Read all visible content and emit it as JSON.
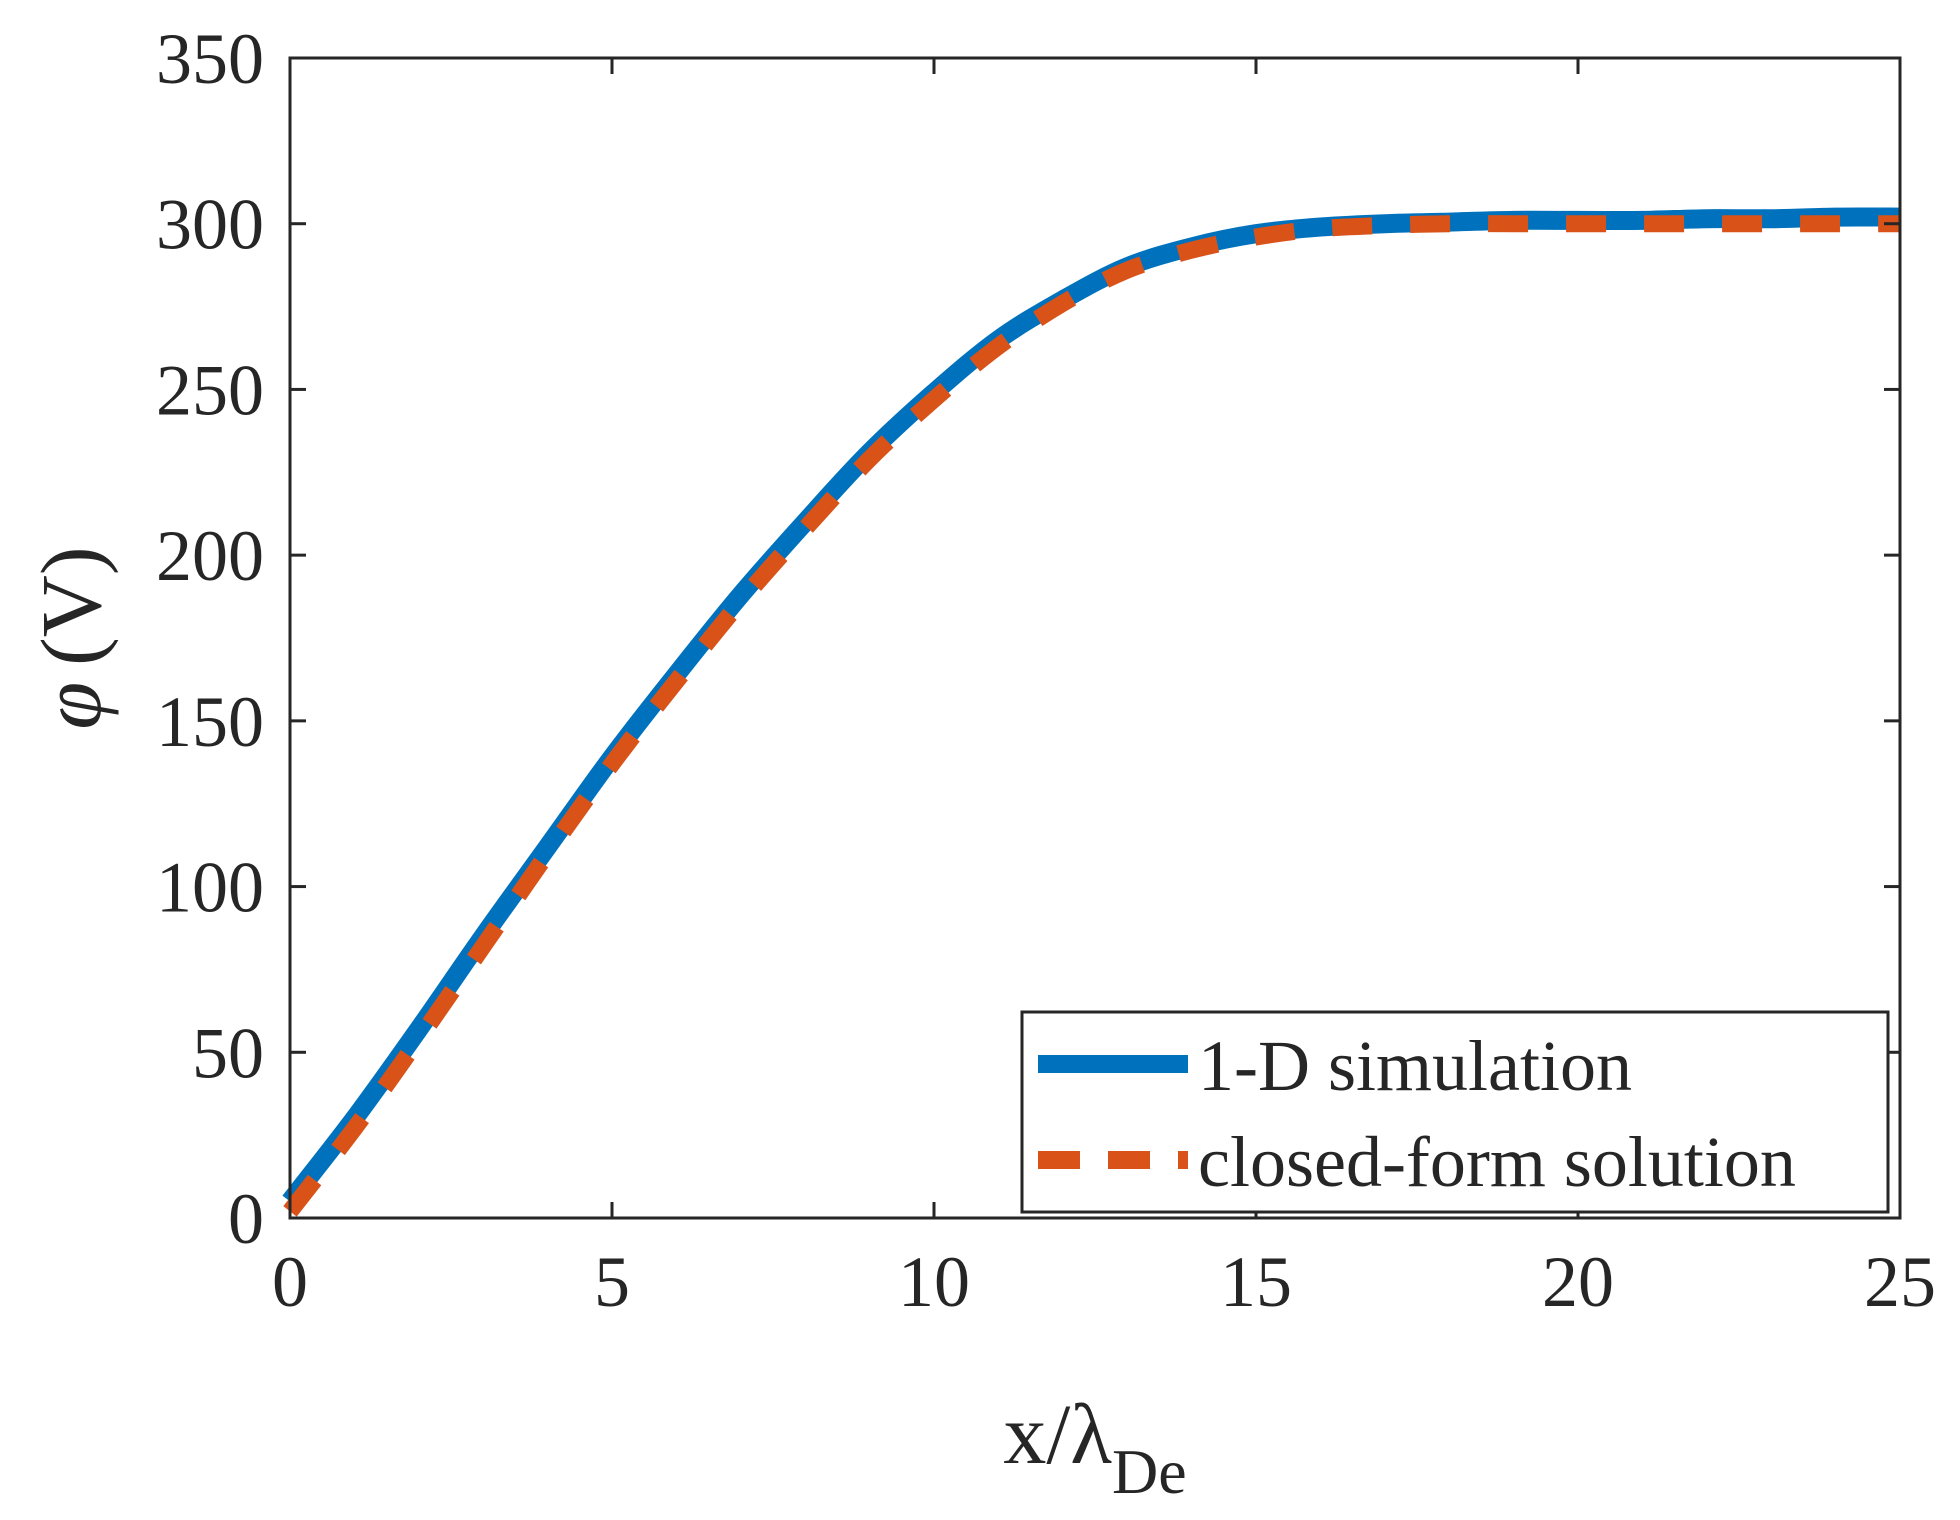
{
  "chart_data": {
    "type": "line",
    "xlabel": "x/λ",
    "xlabel_subscript": "De",
    "ylabel_symbol": "φ",
    "ylabel_unit": "(V)",
    "xlim": [
      0,
      25
    ],
    "ylim": [
      0,
      350
    ],
    "xticks": [
      0,
      5,
      10,
      15,
      20,
      25
    ],
    "yticks": [
      0,
      50,
      100,
      150,
      200,
      250,
      300,
      350
    ],
    "grid": false,
    "legend_position": "bottom-right",
    "series": [
      {
        "name": "1-D simulation",
        "color": "#0072BD",
        "style": "solid",
        "x": [
          0,
          1,
          2,
          3,
          4,
          5,
          6,
          7,
          8,
          9,
          10,
          11,
          12,
          13,
          14,
          15,
          16,
          17,
          18,
          19,
          20,
          21,
          22,
          23,
          24,
          25
        ],
        "y": [
          5,
          30,
          57,
          85,
          112,
          139,
          164,
          188,
          210,
          231,
          249,
          265,
          277,
          287,
          293,
          297,
          299,
          300,
          300.5,
          301,
          301,
          301,
          301.5,
          301.5,
          302,
          302
        ]
      },
      {
        "name": "closed-form solution",
        "color": "#D95319",
        "style": "dashed",
        "x": [
          0,
          1,
          2,
          3,
          4,
          5,
          6,
          7,
          8,
          9,
          10,
          11,
          12,
          13,
          14,
          15,
          16,
          17,
          18,
          19,
          20,
          21,
          22,
          23,
          24,
          25
        ],
        "y": [
          2,
          27,
          54,
          82,
          110,
          137,
          162,
          186,
          208,
          229,
          247,
          263,
          276,
          286,
          292,
          296,
          298.5,
          299.5,
          300,
          300,
          300,
          300,
          300,
          300,
          300,
          300
        ]
      }
    ]
  }
}
